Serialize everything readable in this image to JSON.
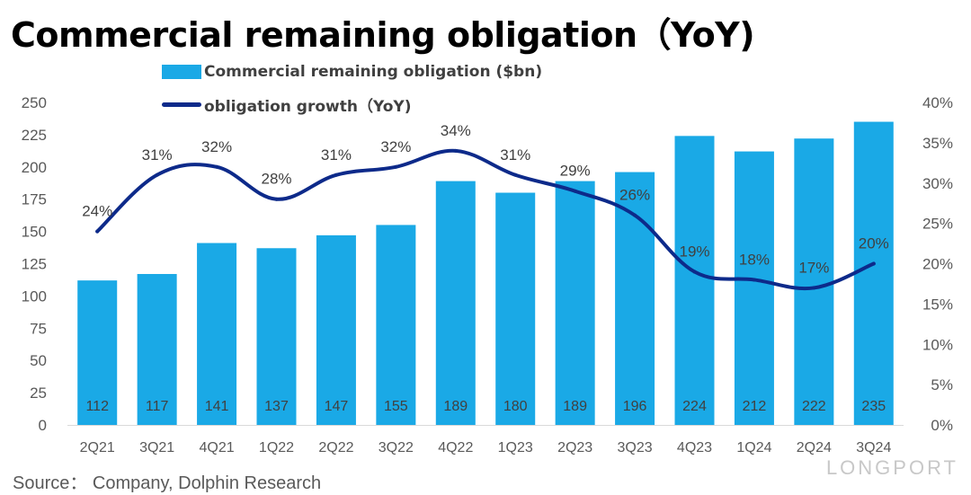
{
  "title": "Commercial remaining obligation（YoY)",
  "source": "Source：  Company, Dolphin Research",
  "watermark": "LONGPORT",
  "chart_data": {
    "type": "bar",
    "categories": [
      "2Q21",
      "3Q21",
      "4Q21",
      "1Q22",
      "2Q22",
      "3Q22",
      "4Q22",
      "1Q23",
      "2Q23",
      "3Q23",
      "4Q23",
      "1Q24",
      "2Q24",
      "3Q24"
    ],
    "series": [
      {
        "name": "Commercial remaining obligation ($bn)",
        "type": "bar",
        "axis": "left",
        "color": "#1aa9e6",
        "values": [
          112,
          117,
          141,
          137,
          147,
          155,
          189,
          180,
          189,
          196,
          224,
          212,
          222,
          235
        ]
      },
      {
        "name": "obligation growth（YoY)",
        "type": "line",
        "axis": "right",
        "color": "#0d2a8a",
        "values": [
          24,
          31,
          32,
          28,
          31,
          32,
          34,
          31,
          29,
          26,
          19,
          18,
          17,
          20
        ],
        "labels": [
          "24%",
          "31%",
          "32%",
          "28%",
          "31%",
          "32%",
          "34%",
          "31%",
          "29%",
          "26%",
          "19%",
          "18%",
          "17%",
          "20%"
        ]
      }
    ],
    "y_left": {
      "min": 0,
      "max": 250,
      "step": 25,
      "ticks": [
        "0",
        "25",
        "50",
        "75",
        "100",
        "125",
        "150",
        "175",
        "200",
        "225",
        "250"
      ]
    },
    "y_right": {
      "min": 0,
      "max": 40,
      "step": 5,
      "ticks": [
        "0%",
        "5%",
        "10%",
        "15%",
        "20%",
        "25%",
        "30%",
        "35%",
        "40%"
      ]
    },
    "legend": [
      {
        "label": "Commercial remaining obligation ($bn)",
        "kind": "bar"
      },
      {
        "label": "obligation growth（YoY)",
        "kind": "line"
      }
    ]
  }
}
